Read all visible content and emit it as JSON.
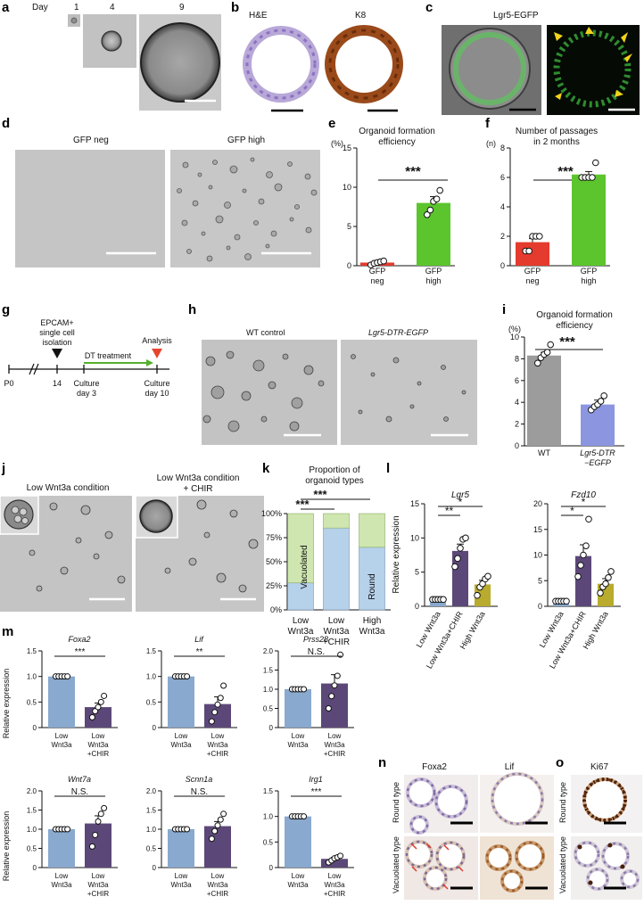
{
  "panel_letters": [
    "a",
    "b",
    "c",
    "d",
    "e",
    "f",
    "g",
    "h",
    "i",
    "j",
    "k",
    "l",
    "m",
    "n",
    "o"
  ],
  "colors": {
    "red": "#e53a2e",
    "green": "#5cc52d",
    "grey": "#9c9c9c",
    "lavender": "#8c96e0",
    "blue": "#89a9cf",
    "purple": "#5c4878",
    "olive": "#b8ab2d",
    "vacuolated": "#cfe6b0",
    "round": "#b6d1ea",
    "k8": "#9a4a1a",
    "lgr5": "#4fd64f",
    "dt_arrow": "#54b02d"
  },
  "a": {
    "day_label": "Day",
    "days": [
      "1",
      "4",
      "9"
    ]
  },
  "b": {
    "he": "H&E",
    "k8": "K8"
  },
  "c": {
    "lgr5": "Lgr5-EGFP"
  },
  "d": {
    "gfp_neg": "GFP neg",
    "gfp_high": "GFP high"
  },
  "e": {
    "title1": "Organoid formation",
    "title2": "efficiency",
    "unit": "(%)",
    "sig": "***"
  },
  "f": {
    "title1": "Number of passages",
    "title2": "in 2 months",
    "unit": "(n)",
    "sig": "***"
  },
  "g": {
    "epcam1": "EPCAM+",
    "epcam2": "single cell",
    "epcam3": "isolation",
    "analysis": "Analysis",
    "dt": "DT treatment",
    "p0": "P0",
    "d14": "14",
    "c3a": "Culture",
    "c3b": "day 3",
    "c10a": "Culture",
    "c10b": "day 10"
  },
  "h": {
    "wt": "WT control",
    "dtr": "Lgr5-DTR-EGFP"
  },
  "i": {
    "title1": "Organoid formation",
    "title2": "efficiency",
    "unit": "(%)",
    "sig": "***"
  },
  "j": {
    "low": "Low Wnt3a condition",
    "chir1": "Low Wnt3a condition",
    "chir2": "+ CHIR"
  },
  "k": {
    "title1": "Proportion of",
    "title2": "organoid types",
    "vacuolated": "Vacuolated",
    "round": "Round",
    "sig": "***"
  },
  "l": {
    "ylabel": "Relative expression"
  },
  "m": {
    "ylabel": "Relative expression"
  },
  "n": {
    "foxa2": "Foxa2",
    "lif": "Lif",
    "round": "Round type",
    "vac": "Vacuolated type"
  },
  "o": {
    "ki67": "Ki67",
    "round": "Round type",
    "vac": "Vacuolated type"
  },
  "chart_data": [
    {
      "id": "e",
      "type": "bar",
      "categories": [
        "GFP neg",
        "GFP high"
      ],
      "values": [
        0.4,
        8.0
      ],
      "errors": [
        0.2,
        0.8
      ],
      "ylim": [
        0,
        15
      ],
      "yticks": [
        0,
        5,
        10,
        15
      ],
      "points": [
        [
          0.1,
          0.3,
          0.4,
          0.5,
          0.6
        ],
        [
          6.5,
          7.1,
          8.2,
          8.5,
          9.6
        ]
      ],
      "colors": [
        "#e53a2e",
        "#5cc52d"
      ],
      "significance": "***"
    },
    {
      "id": "f",
      "type": "bar",
      "categories": [
        "GFP neg",
        "GFP high"
      ],
      "values": [
        1.6,
        6.2
      ],
      "errors": [
        0.24,
        0.2
      ],
      "ylim": [
        0,
        8
      ],
      "yticks": [
        0,
        2,
        4,
        6,
        8
      ],
      "points": [
        [
          1,
          1,
          2,
          2,
          2
        ],
        [
          6,
          6,
          6,
          6,
          7
        ]
      ],
      "colors": [
        "#e53a2e",
        "#5cc52d"
      ],
      "significance": "***"
    },
    {
      "id": "i",
      "type": "bar",
      "categories": [
        "WT",
        "Lgr5-DTR-EGFP"
      ],
      "values": [
        8.3,
        3.8
      ],
      "errors": [
        0.3,
        0.4
      ],
      "ylim": [
        0,
        10
      ],
      "yticks": [
        0,
        2,
        4,
        6,
        8,
        10
      ],
      "points": [
        [
          7.6,
          8.1,
          8.4,
          8.6,
          9.3
        ],
        [
          3.3,
          3.6,
          3.8,
          4.1,
          4.6
        ]
      ],
      "colors": [
        "#9c9c9c",
        "#8c96e0"
      ],
      "significance": "***"
    },
    {
      "id": "k",
      "type": "bar",
      "stacked": true,
      "categories": [
        "Low Wnt3a",
        "Low Wnt3a +CHIR",
        "High Wnt3a"
      ],
      "series": [
        {
          "name": "Round",
          "values": [
            28,
            85,
            65
          ]
        },
        {
          "name": "Vacuolated",
          "values": [
            72,
            15,
            35
          ]
        }
      ],
      "ylim": [
        0,
        100
      ],
      "yticks": [
        "0%",
        "25%",
        "50%",
        "75%",
        "100%"
      ],
      "comparisons": [
        "***",
        "***"
      ]
    },
    {
      "id": "l_lgr5",
      "type": "bar",
      "title": "Lgr5",
      "categories": [
        "Low Wnt3a",
        "Low Wnt3a+CHIR",
        "High Wnt3a"
      ],
      "values": [
        1.0,
        8.1,
        3.2
      ],
      "errors": [
        0.1,
        1.0,
        0.6
      ],
      "ylim": [
        0,
        15
      ],
      "yticks": [
        0,
        5,
        10,
        15
      ],
      "points": [
        [
          1,
          1,
          1,
          1,
          1
        ],
        [
          5.8,
          7.0,
          8.5,
          9.8,
          10.0
        ],
        [
          1.6,
          2.8,
          3.3,
          4.0,
          4.4
        ]
      ],
      "colors": [
        "#89a9cf",
        "#5c4878",
        "#b8ab2d"
      ],
      "comparisons": [
        "**",
        "*"
      ]
    },
    {
      "id": "l_fzd10",
      "type": "bar",
      "title": "Fzd10",
      "categories": [
        "Low Wnt3a",
        "Low Wnt3a+CHIR",
        "High Wnt3a"
      ],
      "values": [
        1.0,
        9.8,
        4.4
      ],
      "errors": [
        0.1,
        2.2,
        1.0
      ],
      "ylim": [
        0,
        20
      ],
      "yticks": [
        0,
        5,
        10,
        15,
        20
      ],
      "points": [
        [
          1,
          1,
          1,
          1,
          1
        ],
        [
          5.8,
          8.0,
          10.0,
          11.8,
          17.0
        ],
        [
          2.6,
          3.8,
          4.4,
          5.6,
          6.8
        ]
      ],
      "colors": [
        "#89a9cf",
        "#5c4878",
        "#b8ab2d"
      ],
      "comparisons": [
        "*",
        "*"
      ]
    },
    {
      "id": "m_foxa2",
      "type": "bar",
      "title": "Foxa2",
      "categories": [
        "Low Wnt3a",
        "Low Wnt3a +CHIR"
      ],
      "values": [
        1.0,
        0.4
      ],
      "errors": [
        0.0,
        0.08
      ],
      "ylim": [
        0,
        1.5
      ],
      "yticks": [
        0,
        0.5,
        1.0,
        1.5
      ],
      "points": [
        [
          1,
          1,
          1,
          1,
          1
        ],
        [
          0.2,
          0.32,
          0.4,
          0.5,
          0.62
        ]
      ],
      "significance": "***"
    },
    {
      "id": "m_lif",
      "type": "bar",
      "title": "Lif",
      "categories": [
        "Low Wnt3a",
        "Low Wnt3a +CHIR"
      ],
      "values": [
        1.0,
        0.46
      ],
      "errors": [
        0.0,
        0.14
      ],
      "ylim": [
        0,
        1.5
      ],
      "yticks": [
        0,
        0.5,
        1.0,
        1.5
      ],
      "points": [
        [
          1,
          1,
          1,
          1,
          1
        ],
        [
          0.12,
          0.3,
          0.45,
          0.58,
          0.82
        ]
      ],
      "significance": "**"
    },
    {
      "id": "m_prss28",
      "type": "bar",
      "title": "Prss28",
      "categories": [
        "Low Wnt3a",
        "Low Wnt3a +CHIR"
      ],
      "values": [
        1.0,
        1.15
      ],
      "errors": [
        0.0,
        0.23
      ],
      "ylim": [
        0,
        2.0
      ],
      "yticks": [
        0,
        0.5,
        1.0,
        1.5,
        2.0
      ],
      "points": [
        [
          1,
          1,
          1,
          1,
          1
        ],
        [
          0.5,
          0.82,
          1.1,
          1.35,
          1.9
        ]
      ],
      "significance": "N.S."
    },
    {
      "id": "m_wnt7a",
      "type": "bar",
      "title": "Wnt7a",
      "categories": [
        "Low Wnt3a",
        "Low Wnt3a +CHIR"
      ],
      "values": [
        1.0,
        1.15
      ],
      "errors": [
        0.0,
        0.2
      ],
      "ylim": [
        0,
        2.0
      ],
      "yticks": [
        0,
        0.5,
        1.0,
        1.5,
        2.0
      ],
      "points": [
        [
          1,
          1,
          1,
          1,
          1
        ],
        [
          0.55,
          0.85,
          1.2,
          1.4,
          1.55
        ]
      ],
      "significance": "N.S."
    },
    {
      "id": "m_scnn1a",
      "type": "bar",
      "title": "Scnn1a",
      "categories": [
        "Low Wnt3a",
        "Low Wnt3a +CHIR"
      ],
      "values": [
        1.0,
        1.08
      ],
      "errors": [
        0.0,
        0.12
      ],
      "ylim": [
        0,
        2.0
      ],
      "yticks": [
        0,
        0.5,
        1.0,
        1.5,
        2.0
      ],
      "points": [
        [
          1,
          1,
          1,
          1,
          1
        ],
        [
          0.75,
          0.95,
          1.1,
          1.25,
          1.4
        ]
      ],
      "significance": "N.S."
    },
    {
      "id": "m_irg1",
      "type": "bar",
      "title": "Irg1",
      "categories": [
        "Low Wnt3a",
        "Low Wnt3a +CHIR"
      ],
      "values": [
        1.0,
        0.17
      ],
      "errors": [
        0.0,
        0.03
      ],
      "ylim": [
        0,
        1.5
      ],
      "yticks": [
        0,
        0.5,
        1.0,
        1.5
      ],
      "points": [
        [
          1,
          1,
          1,
          1,
          1
        ],
        [
          0.1,
          0.14,
          0.18,
          0.2,
          0.23
        ]
      ],
      "significance": "***"
    }
  ]
}
